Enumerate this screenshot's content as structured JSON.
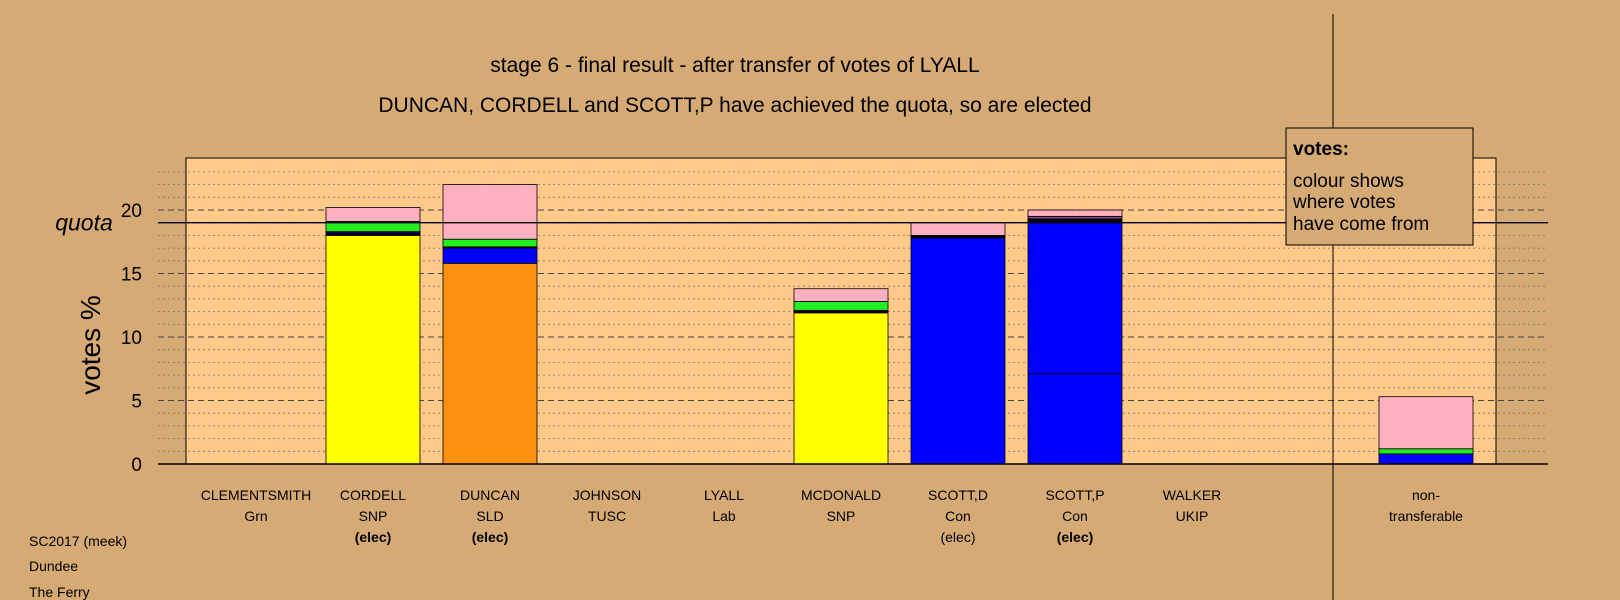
{
  "chart_data": {
    "type": "bar",
    "stacked": true,
    "title": "stage 6 - final result - after transfer of votes of LYALL",
    "subtitle": "DUNCAN, CORDELL and SCOTT,P have achieved the quota, so are elected",
    "ylabel": "votes %",
    "ylim": [
      0,
      24
    ],
    "yticks": [
      0,
      5,
      10,
      15,
      20
    ],
    "quota": 19,
    "quota_label": "quota",
    "grid": true,
    "legend_position": "top-right",
    "legend": {
      "title": "votes:",
      "lines": [
        "colour shows",
        "where votes",
        "have come from"
      ]
    },
    "colors": {
      "background": "#d5aa75",
      "plot": "#ffc98a",
      "SNP": "#ffff00",
      "SLD": "#ff9010",
      "Con": "#0000ff",
      "Grn": "#00ee00",
      "Lab": "#ffb0c0",
      "other": "#000000"
    },
    "candidates": [
      {
        "name": "CLEMENTSMITH",
        "party": "Grn",
        "status": "",
        "segments": []
      },
      {
        "name": "CORDELL",
        "party": "SNP",
        "status": "(elec)",
        "segments": [
          {
            "color": "#ffff00",
            "value": 18.0
          },
          {
            "color": "#000000",
            "value": 0.2
          },
          {
            "color": "#0000ff",
            "value": 0.1
          },
          {
            "color": "#22ee22",
            "value": 0.8
          },
          {
            "color": "#ffb0c0",
            "value": 1.1
          }
        ]
      },
      {
        "name": "DUNCAN",
        "party": "SLD",
        "status": "(elec)",
        "segments": [
          {
            "color": "#ff9010",
            "value": 15.8
          },
          {
            "color": "#0000ff",
            "value": 1.2
          },
          {
            "color": "#000000",
            "value": 0.1
          },
          {
            "color": "#22ee22",
            "value": 0.6
          },
          {
            "color": "#ffb0c0",
            "value": 4.3
          }
        ]
      },
      {
        "name": "JOHNSON",
        "party": "TUSC",
        "status": "",
        "segments": []
      },
      {
        "name": "LYALL",
        "party": "Lab",
        "status": "",
        "segments": []
      },
      {
        "name": "MCDONALD",
        "party": "SNP",
        "status": "",
        "segments": [
          {
            "color": "#ffff00",
            "value": 11.9
          },
          {
            "color": "#000000",
            "value": 0.2
          },
          {
            "color": "#22ee22",
            "value": 0.7
          },
          {
            "color": "#ffb0c0",
            "value": 1.0
          }
        ]
      },
      {
        "name": "SCOTT,D",
        "party": "Con",
        "status": "(elec)",
        "segments": [
          {
            "color": "#0000ff",
            "value": 17.8
          },
          {
            "color": "#000000",
            "value": 0.2
          },
          {
            "color": "#ffb0c0",
            "value": 1.0
          }
        ]
      },
      {
        "name": "SCOTT,P",
        "party": "Con",
        "status": "(elec)",
        "segments": [
          {
            "color": "#0000ff",
            "value": 7.1
          },
          {
            "color": "#0000ff",
            "value": 12.0
          },
          {
            "color": "#000000",
            "value": 0.2
          },
          {
            "color": "#884488",
            "value": 0.2
          },
          {
            "color": "#ffb0c0",
            "value": 0.5
          }
        ]
      },
      {
        "name": "WALKER",
        "party": "UKIP",
        "status": "",
        "segments": []
      },
      {
        "name": "non-",
        "party": "transferable",
        "status": "",
        "segments": [
          {
            "color": "#0000ff",
            "value": 0.8
          },
          {
            "color": "#22ee22",
            "value": 0.4
          },
          {
            "color": "#ffb0c0",
            "value": 4.1
          }
        ]
      }
    ]
  },
  "footer": {
    "line1": "SC2017 (meek)",
    "line2": "Dundee",
    "line3": "The Ferry"
  }
}
